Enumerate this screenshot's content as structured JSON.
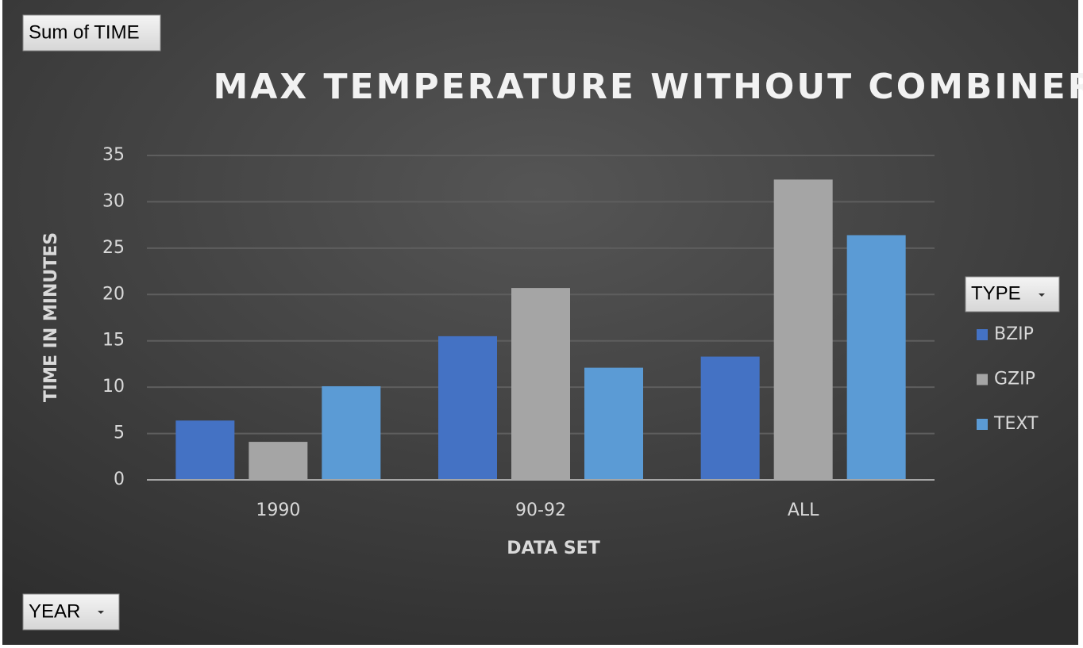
{
  "chart_data": {
    "type": "bar",
    "title": "MAX TEMPERATURE WITHOUT COMBINER",
    "x_label": "DATA SET",
    "y_label": "TIME IN MINUTES",
    "categories": [
      "1990",
      "90-92",
      "ALL"
    ],
    "series": [
      {
        "name": "BZIP",
        "color": "#4472c4",
        "values": [
          6.4,
          15.5,
          13.3
        ]
      },
      {
        "name": "GZIP",
        "color": "#a5a5a5",
        "values": [
          4.1,
          20.7,
          32.4
        ]
      },
      {
        "name": "TEXT",
        "color": "#5b9bd5",
        "values": [
          10.1,
          12.1,
          26.4
        ]
      }
    ],
    "ylim": [
      0,
      35
    ],
    "yticks": [
      0,
      5,
      10,
      15,
      20,
      25,
      30,
      35
    ],
    "grid": true,
    "legend_position": "right"
  },
  "pivot": {
    "values_field": "Sum of TIME",
    "legend_field": "TYPE",
    "filter_field": "YEAR"
  }
}
